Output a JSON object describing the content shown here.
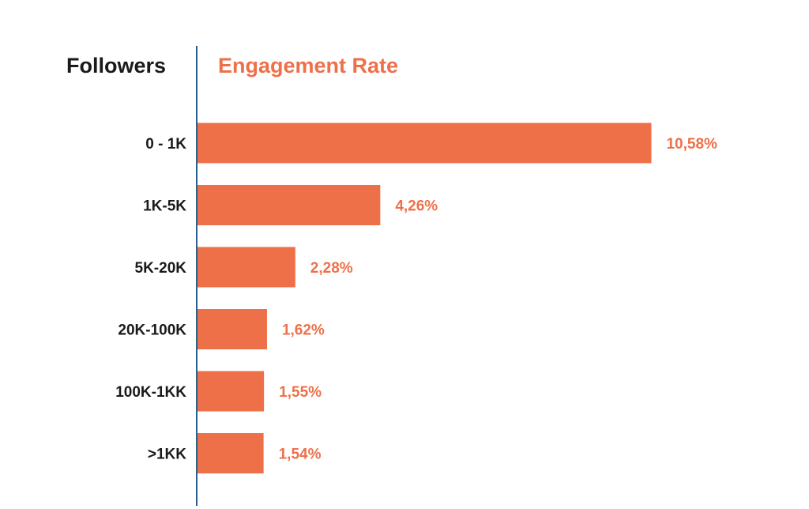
{
  "chart_data": {
    "type": "bar",
    "orientation": "horizontal",
    "category_header": "Followers",
    "value_header": "Engagement Rate",
    "categories": [
      "0 - 1K",
      "1K-5K",
      "5K-20K",
      "20K-100K",
      "100K-1KK",
      ">1KK"
    ],
    "values": [
      10.58,
      4.26,
      2.28,
      1.62,
      1.55,
      1.54
    ],
    "value_labels": [
      "10,58%",
      "4,26%",
      "2,28%",
      "1,62%",
      "1,55%",
      "1,54%"
    ],
    "grid": false,
    "legend": "none",
    "colors": {
      "bar": "#ee7049",
      "value_label": "#ee7049",
      "category_label": "#1a1a1a",
      "axis": "#2c5f8a"
    }
  }
}
